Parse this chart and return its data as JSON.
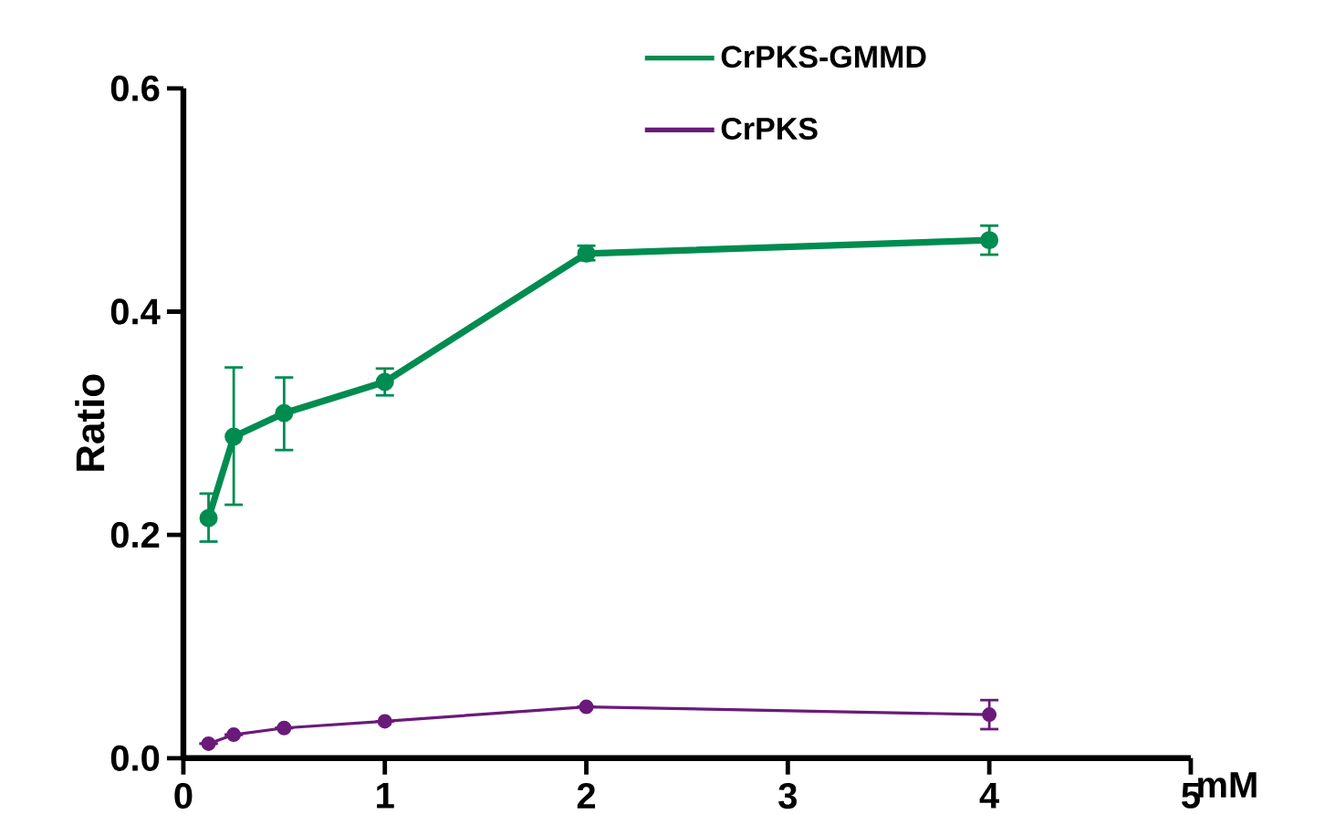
{
  "chart_data": {
    "type": "line",
    "xlabel": "mM",
    "ylabel": "Ratio",
    "x": [
      0.125,
      0.25,
      0.5,
      1,
      2,
      4
    ],
    "series": [
      {
        "name": "CrPKS-GMMD",
        "color": "#008c50",
        "values": [
          0.215,
          0.288,
          0.309,
          0.337,
          0.452,
          0.464
        ],
        "errors": [
          [
            0.194,
            0.237
          ],
          [
            0.227,
            0.35
          ],
          [
            0.276,
            0.341
          ],
          [
            0.325,
            0.349
          ],
          [
            0.446,
            0.459
          ],
          [
            0.451,
            0.477
          ]
        ]
      },
      {
        "name": "CrPKS",
        "color": "#6a1a7a",
        "values": [
          0.013,
          0.021,
          0.027,
          0.033,
          0.046,
          0.039
        ],
        "errors": [
          null,
          null,
          null,
          null,
          null,
          [
            0.026,
            0.052
          ]
        ]
      }
    ],
    "xlim": [
      0,
      5
    ],
    "xticks": [
      0,
      1,
      2,
      3,
      4,
      5
    ],
    "ylim": [
      0,
      0.6
    ],
    "yticks": [
      {
        "value": 0,
        "label": "0.0"
      },
      {
        "value": 0.2,
        "label": "0.2"
      },
      {
        "value": 0.4,
        "label": "0.4"
      },
      {
        "value": 0.6,
        "label": "0.6"
      }
    ],
    "grid": false,
    "legend": "top right",
    "marker": "circle",
    "line_style": "solid"
  }
}
